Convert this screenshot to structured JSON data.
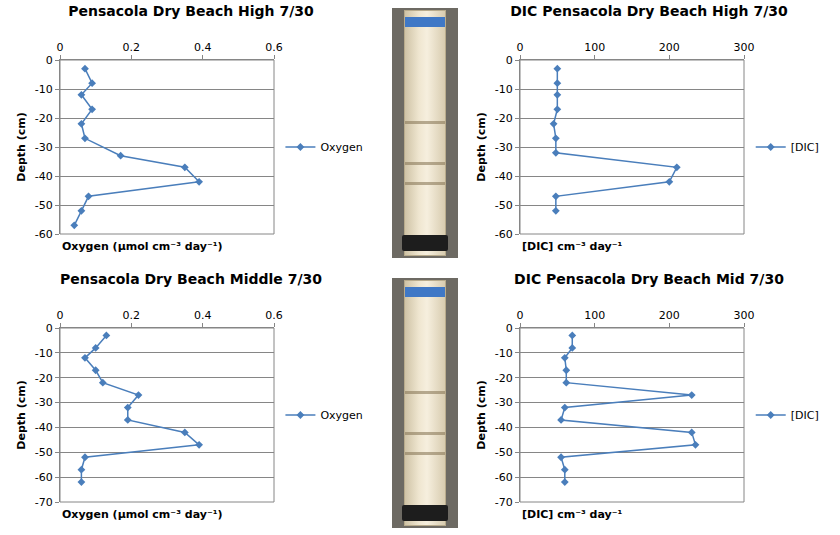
{
  "chart_data": [
    {
      "type": "line",
      "title": "Pensacola Dry Beach High 7/30",
      "x_label": "Oxygen (µmol cm⁻³ day⁻¹)",
      "y_label": "Depth (cm)",
      "xlim": [
        0,
        0.6
      ],
      "xticks": [
        0,
        0.2,
        0.4,
        0.6
      ],
      "ylim": [
        -60,
        0
      ],
      "yticks": [
        0,
        -10,
        -20,
        -30,
        -40,
        -50,
        -60
      ],
      "grid": true,
      "legend": "right",
      "marker": "diamond",
      "series": [
        {
          "name": "Oxygen",
          "color": "#4a7ebb",
          "x": [
            0.07,
            0.09,
            0.06,
            0.09,
            0.06,
            0.07,
            0.17,
            0.35,
            0.39,
            0.08,
            0.06,
            0.04
          ],
          "y": [
            -3,
            -8,
            -12,
            -17,
            -22,
            -27,
            -33,
            -37,
            -42,
            -47,
            -52,
            -57
          ]
        }
      ]
    },
    {
      "type": "line",
      "title": "DIC Pensacola Dry Beach High 7/30",
      "x_label": "[DIC] cm⁻³ day⁻¹",
      "y_label": "Depth (cm)",
      "xlim": [
        0,
        300
      ],
      "xticks": [
        0,
        100,
        200,
        300
      ],
      "ylim": [
        -60,
        0
      ],
      "yticks": [
        0,
        -10,
        -20,
        -30,
        -40,
        -50,
        -60
      ],
      "grid": true,
      "legend": "right",
      "marker": "diamond",
      "series": [
        {
          "name": "[DIC]",
          "color": "#4a7ebb",
          "x": [
            50,
            50,
            50,
            50,
            45,
            48,
            48,
            210,
            200,
            48,
            48
          ],
          "y": [
            -3,
            -8,
            -12,
            -17,
            -22,
            -27,
            -32,
            -37,
            -42,
            -47,
            -52
          ]
        }
      ]
    },
    {
      "type": "line",
      "title": "Pensacola Dry Beach Middle 7/30",
      "x_label": "Oxygen (µmol cm⁻³ day⁻¹)",
      "y_label": "Depth (cm)",
      "xlim": [
        0,
        0.6
      ],
      "xticks": [
        0,
        0.2,
        0.4,
        0.6
      ],
      "ylim": [
        -70,
        0
      ],
      "yticks": [
        0,
        -10,
        -20,
        -30,
        -40,
        -50,
        -60,
        -70
      ],
      "grid": true,
      "legend": "right",
      "marker": "diamond",
      "series": [
        {
          "name": "Oxygen",
          "color": "#4a7ebb",
          "x": [
            0.13,
            0.1,
            0.07,
            0.1,
            0.12,
            0.22,
            0.19,
            0.19,
            0.35,
            0.39,
            0.07,
            0.06,
            0.06
          ],
          "y": [
            -3,
            -8,
            -12,
            -17,
            -22,
            -27,
            -32,
            -37,
            -42,
            -47,
            -52,
            -57,
            -62
          ]
        }
      ]
    },
    {
      "type": "line",
      "title": "DIC Pensacola Dry Beach Mid 7/30",
      "x_label": "[DIC] cm⁻³ day⁻¹",
      "y_label": "Depth (cm)",
      "xlim": [
        0,
        300
      ],
      "xticks": [
        0,
        100,
        200,
        300
      ],
      "ylim": [
        -70,
        0
      ],
      "yticks": [
        0,
        -10,
        -20,
        -30,
        -40,
        -50,
        -60,
        -70
      ],
      "grid": true,
      "legend": "right",
      "marker": "diamond",
      "series": [
        {
          "name": "[DIC]",
          "color": "#4a7ebb",
          "x": [
            70,
            70,
            60,
            62,
            62,
            230,
            60,
            55,
            230,
            235,
            55,
            60,
            60
          ],
          "y": [
            -3,
            -8,
            -12,
            -17,
            -22,
            -27,
            -32,
            -37,
            -42,
            -47,
            -52,
            -57,
            -62
          ]
        }
      ]
    }
  ]
}
